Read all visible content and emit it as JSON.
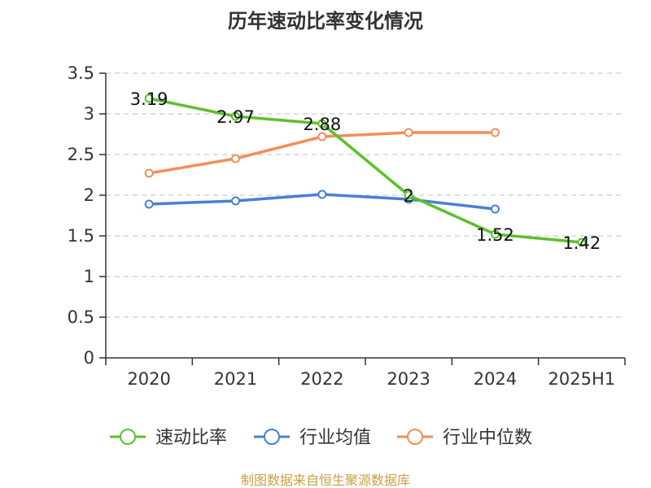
{
  "chart_data": {
    "type": "line",
    "title": "历年速动比率变化情况",
    "categories": [
      "2020",
      "2021",
      "2022",
      "2023",
      "2024",
      "2025H1"
    ],
    "ylim": [
      0,
      3.5
    ],
    "yticks": [
      "0",
      "0.5",
      "1",
      "1.5",
      "2",
      "2.5",
      "3",
      "3.5"
    ],
    "grid": true,
    "legend_position": "bottom",
    "series": [
      {
        "name": "速动比率",
        "color": "#5cc02c",
        "values": [
          3.19,
          2.97,
          2.88,
          2.0,
          1.52,
          1.42
        ],
        "labels": [
          "3.19",
          "2.97",
          "2.88",
          "2",
          "1.52",
          "1.42"
        ]
      },
      {
        "name": "行业均值",
        "color": "#4a7fd6",
        "values": [
          1.89,
          1.93,
          2.01,
          1.95,
          1.83,
          null
        ]
      },
      {
        "name": "行业中位数",
        "color": "#f28e5a",
        "values": [
          2.27,
          2.45,
          2.72,
          2.77,
          2.77,
          null
        ]
      }
    ],
    "source": "制图数据来自恒生聚源数据库"
  }
}
